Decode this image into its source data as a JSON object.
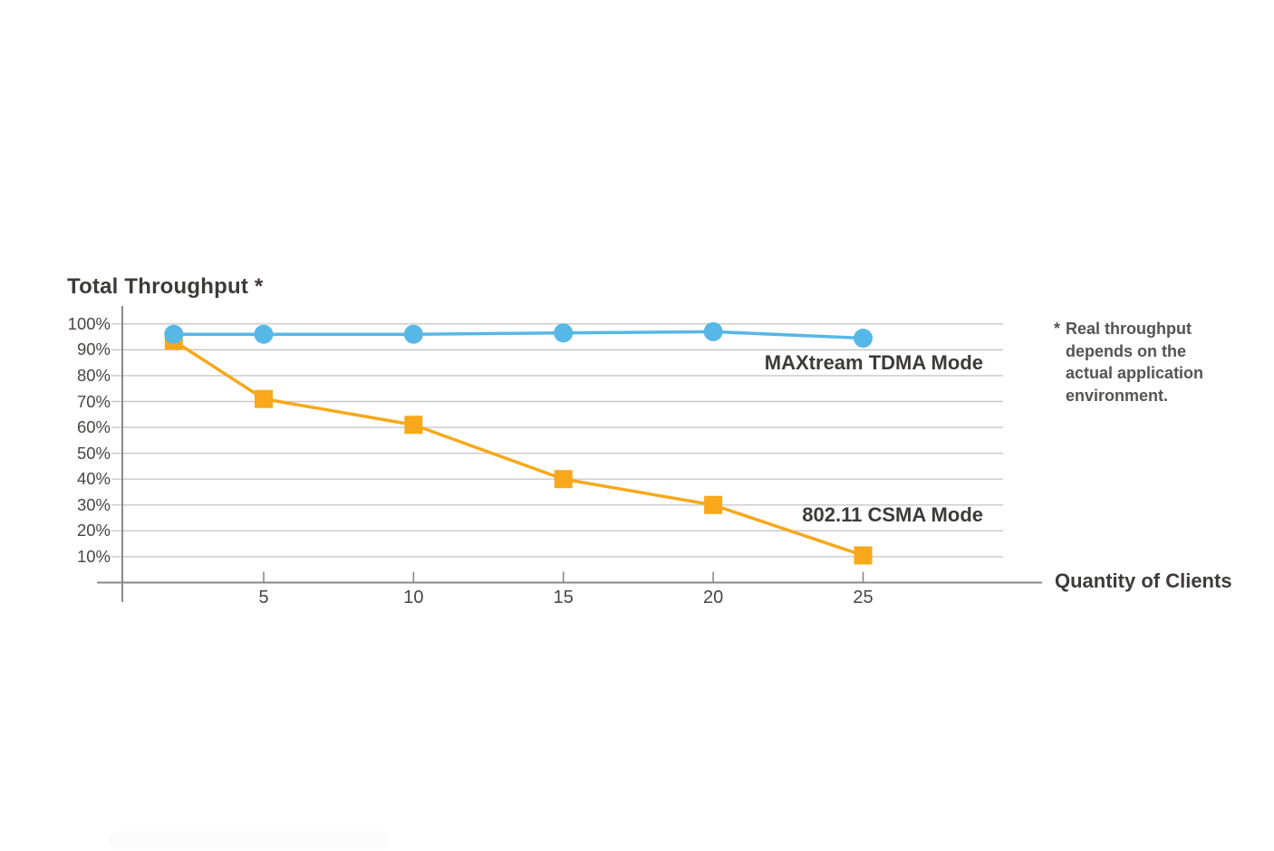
{
  "page": {
    "background": "#ffffff"
  },
  "theme": {
    "grid_color": "#c9c9c9",
    "axis_color": "#8a8a8a",
    "title_color": "#3f3a3a",
    "tick_text_color": "#4a4444",
    "footnote_color": "#575353",
    "tdma_color": "#57b7e7",
    "csma_color": "#f8a81a"
  },
  "chart_data": {
    "type": "line",
    "title": "Total Throughput *",
    "xlabel": "Quantity of Clients",
    "ylabel": "Total Throughput (%)",
    "ylim": [
      0,
      100
    ],
    "grid": true,
    "legend": "inline-labels",
    "x": [
      2,
      5,
      10,
      15,
      20,
      25
    ],
    "x_ticks": [
      5,
      10,
      15,
      20,
      25
    ],
    "y_ticks": [
      10,
      20,
      30,
      40,
      50,
      60,
      70,
      80,
      90,
      100
    ],
    "y_tick_suffix": "%",
    "series": [
      {
        "name": "MAXtream TDMA Mode",
        "color": "#57b7e7",
        "marker": "circle",
        "values": [
          96,
          96,
          96,
          96.5,
          97,
          94.5
        ]
      },
      {
        "name": "802.11 CSMA Mode",
        "color": "#f8a81a",
        "marker": "square",
        "values": [
          93.5,
          71,
          61,
          40,
          30,
          10.5
        ]
      }
    ]
  },
  "footnote": {
    "marker": "*",
    "text": "Real throughput\ndepends on the\nactual application\nenvironment."
  }
}
